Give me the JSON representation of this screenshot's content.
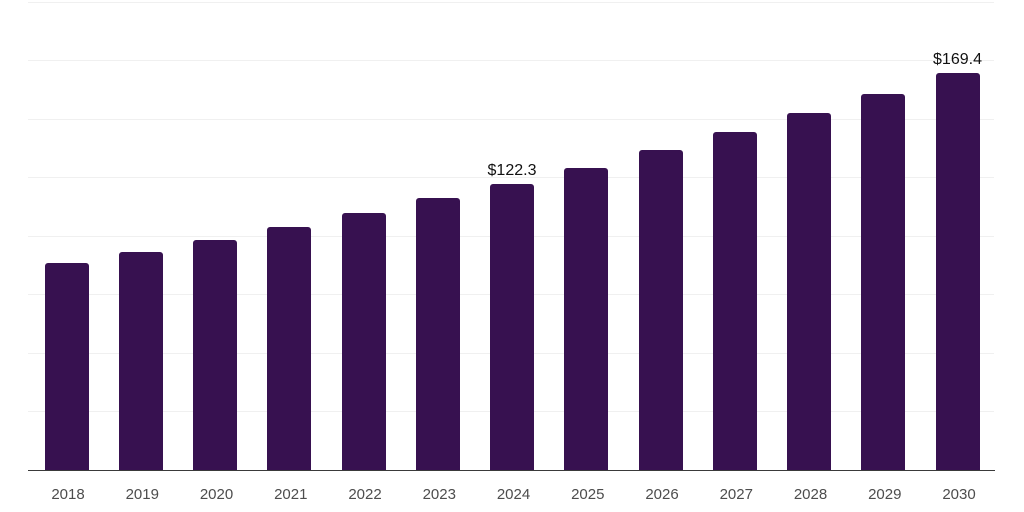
{
  "chart_data": {
    "type": "bar",
    "title": "",
    "xlabel": "",
    "ylabel": "",
    "categories": [
      "2018",
      "2019",
      "2020",
      "2021",
      "2022",
      "2023",
      "2024",
      "2025",
      "2026",
      "2027",
      "2028",
      "2029",
      "2030"
    ],
    "values": [
      88.3,
      93.0,
      98.2,
      103.8,
      109.9,
      116.2,
      122.3,
      129.0,
      136.4,
      144.4,
      152.4,
      160.4,
      169.4
    ],
    "bar_labels": [
      "",
      "",
      "",
      "",
      "",
      "",
      "$122.3",
      "",
      "",
      "",
      "",
      "",
      "$169.4"
    ],
    "value_prefix": "$",
    "ylim": [
      0,
      200
    ],
    "ytick_step": 25,
    "grid": "horizontal",
    "y_axis_labels_shown": false,
    "legend": "none",
    "colors": {
      "bar": "#371150",
      "gridline": "#f0f0f0",
      "axis_line": "#3a3a3a",
      "tick_label": "#4d4d4d",
      "value_label": "#111111",
      "background": "#ffffff"
    }
  }
}
